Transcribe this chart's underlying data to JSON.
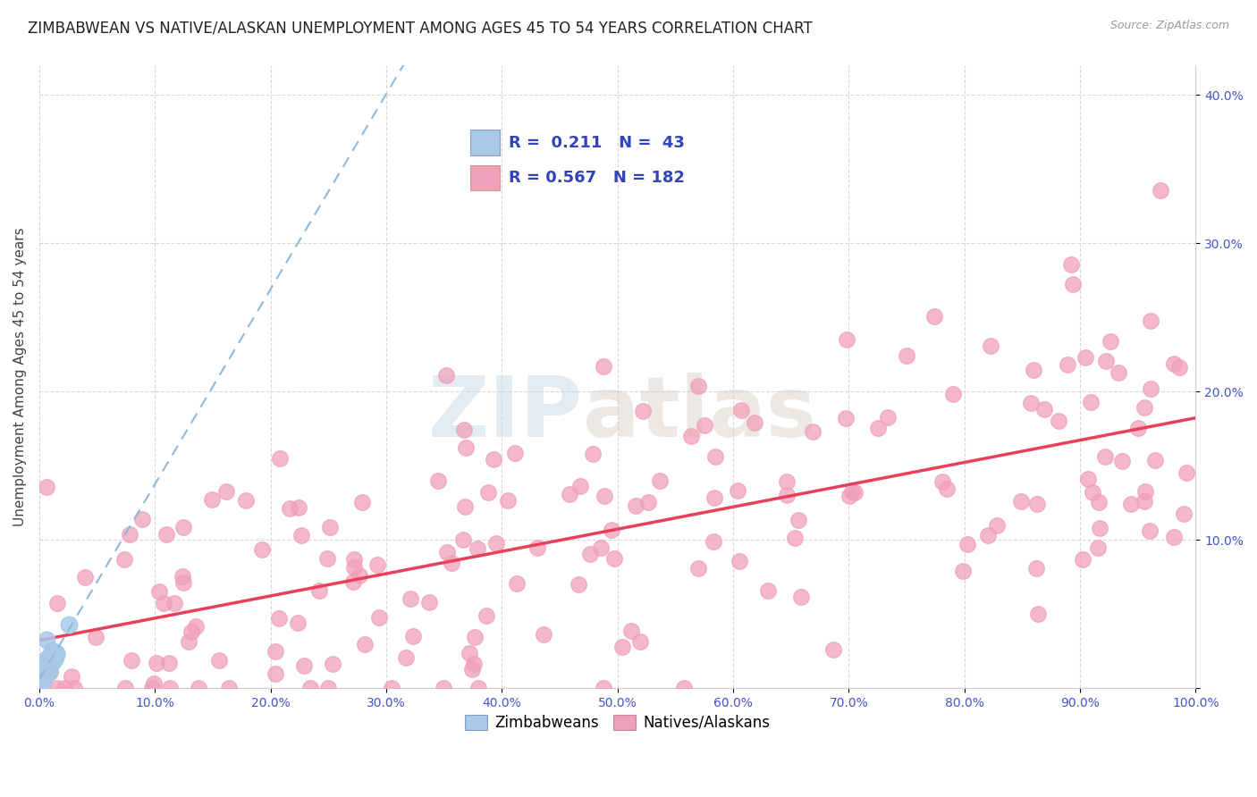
{
  "title": "ZIMBABWEAN VS NATIVE/ALASKAN UNEMPLOYMENT AMONG AGES 45 TO 54 YEARS CORRELATION CHART",
  "source": "Source: ZipAtlas.com",
  "ylabel": "Unemployment Among Ages 45 to 54 years",
  "xlim": [
    0,
    1.0
  ],
  "ylim": [
    0,
    0.42
  ],
  "xticks": [
    0.0,
    0.1,
    0.2,
    0.3,
    0.4,
    0.5,
    0.6,
    0.7,
    0.8,
    0.9,
    1.0
  ],
  "xticklabels": [
    "0.0%",
    "10.0%",
    "20.0%",
    "30.0%",
    "40.0%",
    "50.0%",
    "60.0%",
    "70.0%",
    "80.0%",
    "90.0%",
    "100.0%"
  ],
  "yticks": [
    0.0,
    0.1,
    0.2,
    0.3,
    0.4
  ],
  "yticklabels": [
    "",
    "10.0%",
    "20.0%",
    "30.0%",
    "40.0%"
  ],
  "zimbabwean_color": "#a8c8e8",
  "native_color": "#f0a0b8",
  "trend_zim_color": "#90b8d8",
  "trend_nat_color": "#e8405a",
  "background_color": "#ffffff",
  "grid_color": "#d8d8d8",
  "R_zim": 0.211,
  "N_zim": 43,
  "R_nat": 0.567,
  "N_nat": 182,
  "title_fontsize": 12,
  "axis_label_fontsize": 11,
  "tick_fontsize": 10,
  "tick_color": "#4455cc"
}
